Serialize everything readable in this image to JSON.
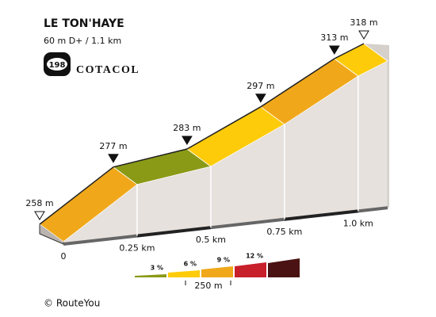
{
  "chart_data": {
    "type": "elevation-profile",
    "title": "LE TON'HAYE",
    "subtitle": "60 m D+ / 1.1 km",
    "badge": "198",
    "brand": "COTACOL",
    "x": [
      0,
      0.25,
      0.5,
      0.75,
      1.0,
      1.1
    ],
    "values": [
      258,
      277,
      283,
      297,
      313,
      318
    ],
    "value_labels": [
      "258 m",
      "277 m",
      "283 m",
      "297 m",
      "313 m",
      "318 m"
    ],
    "segment_colors": [
      "#f0a81a",
      "#8b9a16",
      "#fdcb0a",
      "#f0a81a",
      "#fdcb0a"
    ],
    "xlim": [
      0,
      1.1
    ],
    "ylim": [
      258,
      318
    ],
    "xticks": [
      0,
      {
        "value": 0.25,
        "label": "0.25 km"
      },
      {
        "value": 0.5,
        "label": "0.5 km"
      },
      {
        "value": 0.75,
        "label": "0.75 km"
      },
      {
        "value": 1.0,
        "label": "1.0 km"
      }
    ],
    "legend": [
      {
        "label": "3 %",
        "color": "#8b9a16"
      },
      {
        "label": "6 %",
        "color": "#fdcb0a"
      },
      {
        "label": "9 %",
        "color": "#f0a81a"
      },
      {
        "label": "12 %",
        "color": "#c8202a"
      },
      {
        "color": "#4a1212"
      }
    ],
    "scale_label": "250 m",
    "footer": "© RouteYou"
  }
}
